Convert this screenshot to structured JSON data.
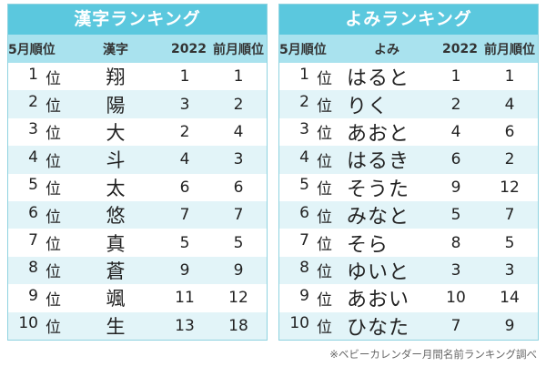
{
  "kanji_table": {
    "title": "漢字ランキング",
    "headers": [
      "5月順位",
      "漢字",
      "2022",
      "前月順位"
    ],
    "rows": [
      {
        "rank": "1",
        "suffix": "位",
        "name": "翔",
        "y2022": "1",
        "prev": "1"
      },
      {
        "rank": "2",
        "suffix": "位",
        "name": "陽",
        "y2022": "3",
        "prev": "2"
      },
      {
        "rank": "3",
        "suffix": "位",
        "name": "大",
        "y2022": "2",
        "prev": "4"
      },
      {
        "rank": "4",
        "suffix": "位",
        "name": "斗",
        "y2022": "4",
        "prev": "3"
      },
      {
        "rank": "5",
        "suffix": "位",
        "name": "太",
        "y2022": "6",
        "prev": "6"
      },
      {
        "rank": "6",
        "suffix": "位",
        "name": "悠",
        "y2022": "7",
        "prev": "7"
      },
      {
        "rank": "7",
        "suffix": "位",
        "name": "真",
        "y2022": "5",
        "prev": "5"
      },
      {
        "rank": "8",
        "suffix": "位",
        "name": "蒼",
        "y2022": "9",
        "prev": "9"
      },
      {
        "rank": "9",
        "suffix": "位",
        "name": "颯",
        "y2022": "11",
        "prev": "12"
      },
      {
        "rank": "10",
        "suffix": "位",
        "name": "生",
        "y2022": "13",
        "prev": "18"
      }
    ]
  },
  "yomi_table": {
    "title": "よみランキング",
    "headers": [
      "5月順位",
      "よみ",
      "2022",
      "前月順位"
    ],
    "rows": [
      {
        "rank": "1",
        "suffix": "位",
        "name": "はると",
        "y2022": "1",
        "prev": "1"
      },
      {
        "rank": "2",
        "suffix": "位",
        "name": "りく",
        "y2022": "2",
        "prev": "4"
      },
      {
        "rank": "3",
        "suffix": "位",
        "name": "あおと",
        "y2022": "4",
        "prev": "6"
      },
      {
        "rank": "4",
        "suffix": "位",
        "name": "はるき",
        "y2022": "6",
        "prev": "2"
      },
      {
        "rank": "5",
        "suffix": "位",
        "name": "そうた",
        "y2022": "9",
        "prev": "12"
      },
      {
        "rank": "6",
        "suffix": "位",
        "name": "みなと",
        "y2022": "5",
        "prev": "7"
      },
      {
        "rank": "7",
        "suffix": "位",
        "name": "そら",
        "y2022": "8",
        "prev": "5"
      },
      {
        "rank": "8",
        "suffix": "位",
        "name": "ゆいと",
        "y2022": "3",
        "prev": "3"
      },
      {
        "rank": "9",
        "suffix": "位",
        "name": "あおい",
        "y2022": "10",
        "prev": "14"
      },
      {
        "rank": "10",
        "suffix": "位",
        "name": "ひなた",
        "y2022": "7",
        "prev": "9"
      }
    ]
  },
  "footnote": "※ベビーカレンダー月間名前ランキング調べ",
  "colors": {
    "title_bg": "#5bc8de",
    "header_bg": "#a9e2ee",
    "alt_row_bg": "#e2f4f8",
    "border": "#8fd3e0"
  }
}
